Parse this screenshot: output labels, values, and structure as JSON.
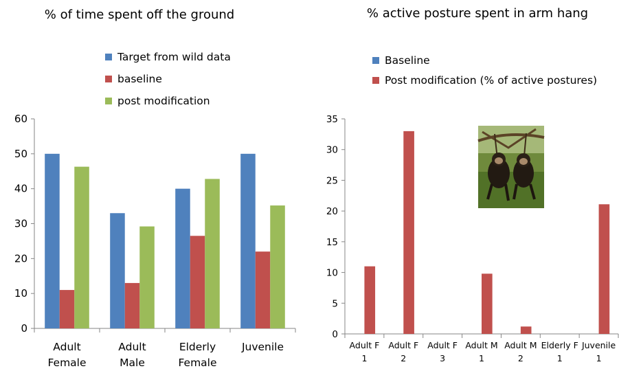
{
  "chart_data": [
    {
      "type": "bar",
      "title": "% of time spent off the ground",
      "categories": [
        [
          "Adult",
          "Female"
        ],
        [
          "Adult",
          "Male"
        ],
        [
          "Elderly",
          "Female"
        ],
        [
          "Juvenile"
        ]
      ],
      "ylim": [
        0,
        60
      ],
      "yticks": [
        0,
        10,
        20,
        30,
        40,
        50,
        60
      ],
      "grid": false,
      "legend_position": "top",
      "series": [
        {
          "name": "Target from wild data",
          "color": "#4f81bd",
          "values": [
            50,
            33,
            40,
            50
          ]
        },
        {
          "name": "baseline",
          "color": "#c0504d",
          "values": [
            11,
            13,
            26.5,
            22
          ]
        },
        {
          "name": "post modification",
          "color": "#9bbb59",
          "values": [
            46.3,
            29.2,
            42.8,
            35.2
          ]
        }
      ]
    },
    {
      "type": "bar",
      "title": "% active posture spent in arm hang",
      "categories": [
        [
          "Adult F",
          "1"
        ],
        [
          "Adult F",
          "2"
        ],
        [
          "Adult F",
          "3"
        ],
        [
          "Adult M",
          "1"
        ],
        [
          "Adult M",
          "2"
        ],
        [
          "Elderly F",
          "1"
        ],
        [
          "Juvenile",
          "1"
        ]
      ],
      "ylim": [
        0,
        35
      ],
      "yticks": [
        0,
        5,
        10,
        15,
        20,
        25,
        30,
        35
      ],
      "grid": false,
      "legend_position": "top",
      "series": [
        {
          "name": "Baseline",
          "color": "#4f81bd",
          "values": [
            0,
            0,
            0,
            0,
            0,
            0,
            0
          ]
        },
        {
          "name": "Post modification (% of active postures)",
          "color": "#c0504d",
          "values": [
            11,
            33,
            0,
            9.8,
            1.2,
            0,
            21.1
          ]
        }
      ],
      "inset_image": "photo of two young chimpanzees hanging from tree branches"
    }
  ]
}
